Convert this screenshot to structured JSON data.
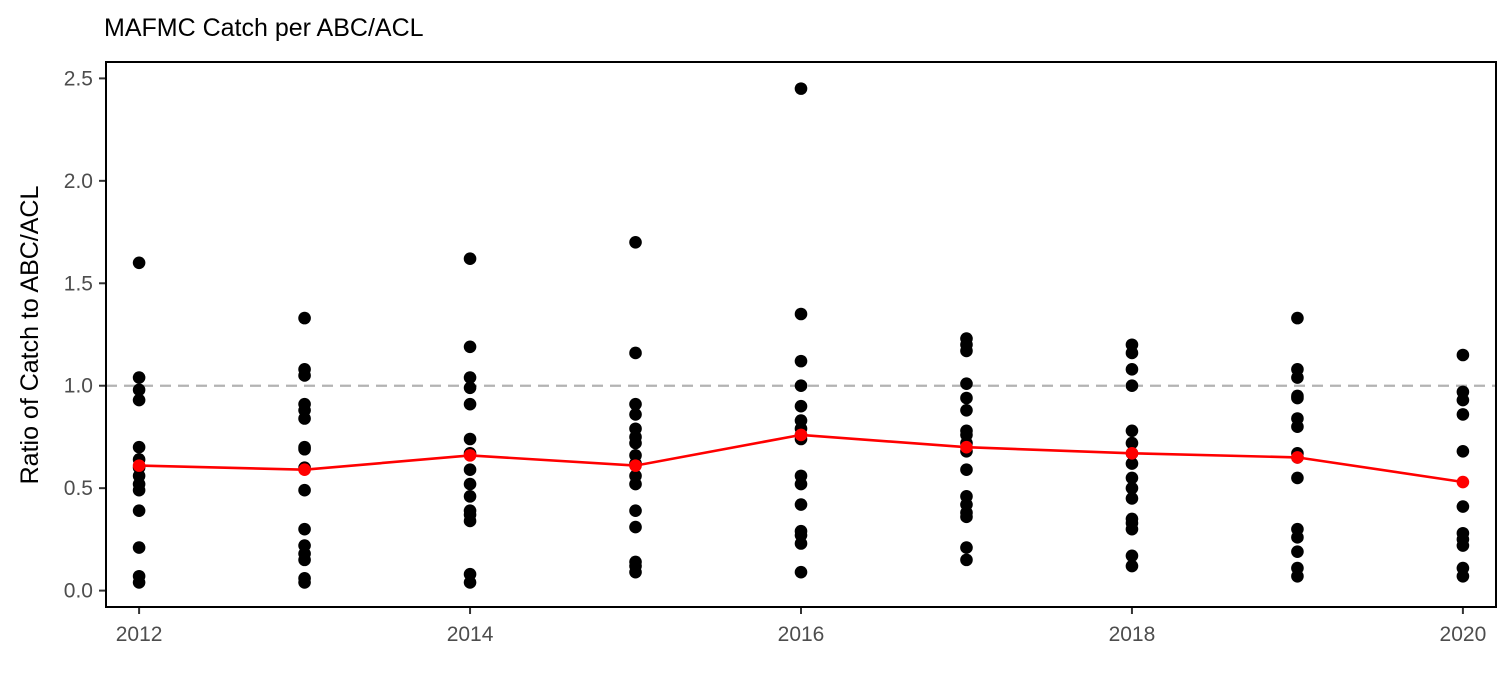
{
  "chart_data": {
    "type": "scatter",
    "title": "MAFMC Catch per ABC/ACL",
    "xlabel": "",
    "ylabel": "Ratio of Catch to ABC/ACL",
    "xlim": [
      2011.8,
      2020.2
    ],
    "ylim": [
      -0.08,
      2.58
    ],
    "x_ticks": [
      2012,
      2014,
      2016,
      2018,
      2020
    ],
    "x_tick_labels": [
      "2012",
      "2014",
      "2016",
      "2018",
      "2020"
    ],
    "y_ticks": [
      0.0,
      0.5,
      1.0,
      1.5,
      2.0,
      2.5
    ],
    "y_tick_labels": [
      "0.0",
      "0.5",
      "1.0",
      "1.5",
      "2.0",
      "2.5"
    ],
    "reference_line": {
      "y": 1.0,
      "style": "dashed",
      "color": "#b3b3b3"
    },
    "grid": false,
    "series": [
      {
        "kind": "points",
        "color": "#000000",
        "points": [
          [
            2012,
            1.6
          ],
          [
            2012,
            1.04
          ],
          [
            2012,
            0.98
          ],
          [
            2012,
            0.93
          ],
          [
            2012,
            0.7
          ],
          [
            2012,
            0.64
          ],
          [
            2012,
            0.6
          ],
          [
            2012,
            0.56
          ],
          [
            2012,
            0.52
          ],
          [
            2012,
            0.49
          ],
          [
            2012,
            0.39
          ],
          [
            2012,
            0.21
          ],
          [
            2012,
            0.07
          ],
          [
            2012,
            0.04
          ],
          [
            2013,
            1.33
          ],
          [
            2013,
            1.08
          ],
          [
            2013,
            1.05
          ],
          [
            2013,
            0.91
          ],
          [
            2013,
            0.88
          ],
          [
            2013,
            0.84
          ],
          [
            2013,
            0.7
          ],
          [
            2013,
            0.69
          ],
          [
            2013,
            0.6
          ],
          [
            2013,
            0.49
          ],
          [
            2013,
            0.3
          ],
          [
            2013,
            0.22
          ],
          [
            2013,
            0.18
          ],
          [
            2013,
            0.15
          ],
          [
            2013,
            0.06
          ],
          [
            2013,
            0.04
          ],
          [
            2014,
            1.62
          ],
          [
            2014,
            1.19
          ],
          [
            2014,
            1.04
          ],
          [
            2014,
            0.99
          ],
          [
            2014,
            0.91
          ],
          [
            2014,
            0.74
          ],
          [
            2014,
            0.67
          ],
          [
            2014,
            0.59
          ],
          [
            2014,
            0.52
          ],
          [
            2014,
            0.46
          ],
          [
            2014,
            0.39
          ],
          [
            2014,
            0.37
          ],
          [
            2014,
            0.34
          ],
          [
            2014,
            0.08
          ],
          [
            2014,
            0.04
          ],
          [
            2015,
            1.7
          ],
          [
            2015,
            1.16
          ],
          [
            2015,
            0.91
          ],
          [
            2015,
            0.86
          ],
          [
            2015,
            0.79
          ],
          [
            2015,
            0.75
          ],
          [
            2015,
            0.72
          ],
          [
            2015,
            0.66
          ],
          [
            2015,
            0.62
          ],
          [
            2015,
            0.56
          ],
          [
            2015,
            0.52
          ],
          [
            2015,
            0.39
          ],
          [
            2015,
            0.31
          ],
          [
            2015,
            0.14
          ],
          [
            2015,
            0.12
          ],
          [
            2015,
            0.09
          ],
          [
            2016,
            2.45
          ],
          [
            2016,
            1.35
          ],
          [
            2016,
            1.12
          ],
          [
            2016,
            1.0
          ],
          [
            2016,
            0.9
          ],
          [
            2016,
            0.83
          ],
          [
            2016,
            0.79
          ],
          [
            2016,
            0.76
          ],
          [
            2016,
            0.74
          ],
          [
            2016,
            0.56
          ],
          [
            2016,
            0.52
          ],
          [
            2016,
            0.42
          ],
          [
            2016,
            0.29
          ],
          [
            2016,
            0.27
          ],
          [
            2016,
            0.23
          ],
          [
            2016,
            0.09
          ],
          [
            2017,
            1.23
          ],
          [
            2017,
            1.2
          ],
          [
            2017,
            1.17
          ],
          [
            2017,
            1.01
          ],
          [
            2017,
            0.94
          ],
          [
            2017,
            0.88
          ],
          [
            2017,
            0.78
          ],
          [
            2017,
            0.76
          ],
          [
            2017,
            0.72
          ],
          [
            2017,
            0.68
          ],
          [
            2017,
            0.59
          ],
          [
            2017,
            0.46
          ],
          [
            2017,
            0.42
          ],
          [
            2017,
            0.38
          ],
          [
            2017,
            0.36
          ],
          [
            2017,
            0.21
          ],
          [
            2017,
            0.15
          ],
          [
            2018,
            1.2
          ],
          [
            2018,
            1.16
          ],
          [
            2018,
            1.08
          ],
          [
            2018,
            1.0
          ],
          [
            2018,
            0.78
          ],
          [
            2018,
            0.72
          ],
          [
            2018,
            0.67
          ],
          [
            2018,
            0.62
          ],
          [
            2018,
            0.55
          ],
          [
            2018,
            0.5
          ],
          [
            2018,
            0.45
          ],
          [
            2018,
            0.35
          ],
          [
            2018,
            0.33
          ],
          [
            2018,
            0.3
          ],
          [
            2018,
            0.17
          ],
          [
            2018,
            0.12
          ],
          [
            2019,
            1.33
          ],
          [
            2019,
            1.08
          ],
          [
            2019,
            1.04
          ],
          [
            2019,
            0.95
          ],
          [
            2019,
            0.94
          ],
          [
            2019,
            0.84
          ],
          [
            2019,
            0.8
          ],
          [
            2019,
            0.67
          ],
          [
            2019,
            0.65
          ],
          [
            2019,
            0.55
          ],
          [
            2019,
            0.3
          ],
          [
            2019,
            0.26
          ],
          [
            2019,
            0.19
          ],
          [
            2019,
            0.11
          ],
          [
            2019,
            0.07
          ],
          [
            2020,
            1.15
          ],
          [
            2020,
            0.97
          ],
          [
            2020,
            0.93
          ],
          [
            2020,
            0.86
          ],
          [
            2020,
            0.68
          ],
          [
            2020,
            0.41
          ],
          [
            2020,
            0.28
          ],
          [
            2020,
            0.25
          ],
          [
            2020,
            0.22
          ],
          [
            2020,
            0.11
          ],
          [
            2020,
            0.07
          ]
        ]
      },
      {
        "kind": "line",
        "color": "#ff0000",
        "x": [
          2012,
          2013,
          2014,
          2015,
          2016,
          2017,
          2018,
          2019,
          2020
        ],
        "values": [
          0.61,
          0.59,
          0.66,
          0.61,
          0.76,
          0.7,
          0.67,
          0.65,
          0.53
        ]
      }
    ]
  }
}
